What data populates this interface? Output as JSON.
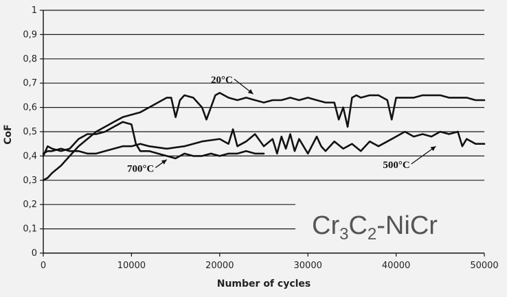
{
  "chart_data": {
    "type": "line",
    "title": "",
    "annotation": {
      "base": "Cr",
      "sub1": "3",
      "mid": "C",
      "sub2": "2",
      "tail": "-NiCr"
    },
    "xlabel": "Number of cycles",
    "ylabel": "CoF",
    "xlim": [
      0,
      50000
    ],
    "ylim": [
      0,
      1
    ],
    "x_ticks": [
      0,
      10000,
      20000,
      30000,
      40000,
      50000
    ],
    "x_tick_labels": [
      "0",
      "10000",
      "20000",
      "30000",
      "40000",
      "50000"
    ],
    "y_ticks": [
      0,
      0.1,
      0.2,
      0.3,
      0.4,
      0.5,
      0.6,
      0.7,
      0.8,
      0.9,
      1
    ],
    "y_tick_labels": [
      "0",
      "0,1",
      "0,2",
      "0,3",
      "0,4",
      "0,5",
      "0,6",
      "0,7",
      "0,8",
      "0,9",
      "1"
    ],
    "grid": true,
    "legend": "inline labels",
    "series": [
      {
        "name": "20°C",
        "x": [
          0,
          500,
          1000,
          2000,
          3000,
          4000,
          5000,
          6000,
          7000,
          8000,
          9000,
          10000,
          11000,
          12000,
          13000,
          14000,
          14500,
          15000,
          15500,
          16000,
          17000,
          18000,
          18500,
          19000,
          19500,
          20000,
          21000,
          22000,
          23000,
          24000,
          25000,
          26000,
          27000,
          28000,
          29000,
          30000,
          31000,
          32000,
          33000,
          33500,
          34000,
          34500,
          35000,
          35500,
          36000,
          37000,
          38000,
          39000,
          39500,
          40000,
          41000,
          42000,
          43000,
          44000,
          45000,
          46000,
          47000,
          48000,
          49000,
          50000
        ],
        "values": [
          0.3,
          0.31,
          0.33,
          0.36,
          0.4,
          0.44,
          0.47,
          0.5,
          0.52,
          0.54,
          0.56,
          0.57,
          0.58,
          0.6,
          0.62,
          0.64,
          0.64,
          0.56,
          0.63,
          0.65,
          0.64,
          0.6,
          0.55,
          0.6,
          0.65,
          0.66,
          0.64,
          0.63,
          0.64,
          0.63,
          0.62,
          0.63,
          0.63,
          0.64,
          0.63,
          0.64,
          0.63,
          0.62,
          0.62,
          0.55,
          0.6,
          0.52,
          0.64,
          0.65,
          0.64,
          0.65,
          0.65,
          0.63,
          0.55,
          0.64,
          0.64,
          0.64,
          0.65,
          0.65,
          0.65,
          0.64,
          0.64,
          0.64,
          0.63,
          0.63
        ]
      },
      {
        "name": "500°C",
        "x": [
          0,
          500,
          1000,
          2000,
          3000,
          4000,
          5000,
          6000,
          7000,
          8000,
          9000,
          10000,
          11000,
          12000,
          14000,
          16000,
          18000,
          20000,
          21000,
          21500,
          22000,
          23000,
          24000,
          25000,
          26000,
          26500,
          27000,
          27500,
          28000,
          28500,
          29000,
          30000,
          31000,
          31500,
          32000,
          33000,
          34000,
          35000,
          36000,
          37000,
          38000,
          39000,
          40000,
          41000,
          42000,
          43000,
          44000,
          45000,
          46000,
          47000,
          47500,
          48000,
          49000,
          50000
        ],
        "values": [
          0.41,
          0.42,
          0.42,
          0.43,
          0.42,
          0.42,
          0.41,
          0.41,
          0.42,
          0.43,
          0.44,
          0.44,
          0.45,
          0.44,
          0.43,
          0.44,
          0.46,
          0.47,
          0.45,
          0.51,
          0.44,
          0.46,
          0.49,
          0.44,
          0.47,
          0.41,
          0.48,
          0.43,
          0.49,
          0.42,
          0.47,
          0.41,
          0.48,
          0.44,
          0.42,
          0.46,
          0.43,
          0.45,
          0.42,
          0.46,
          0.44,
          0.46,
          0.48,
          0.5,
          0.48,
          0.49,
          0.48,
          0.5,
          0.49,
          0.5,
          0.44,
          0.47,
          0.45,
          0.45
        ]
      },
      {
        "name": "700°C",
        "x": [
          0,
          500,
          1000,
          2000,
          3000,
          4000,
          5000,
          6000,
          7000,
          8000,
          9000,
          10000,
          10500,
          11000,
          12000,
          13000,
          14000,
          15000,
          16000,
          17000,
          18000,
          19000,
          20000,
          21000,
          22000,
          23000,
          24000,
          25000
        ],
        "values": [
          0.4,
          0.44,
          0.43,
          0.42,
          0.43,
          0.47,
          0.49,
          0.49,
          0.5,
          0.52,
          0.54,
          0.53,
          0.45,
          0.42,
          0.42,
          0.41,
          0.4,
          0.39,
          0.41,
          0.4,
          0.4,
          0.41,
          0.4,
          0.41,
          0.41,
          0.42,
          0.41,
          0.41
        ]
      }
    ],
    "series_label_positions": [
      {
        "label": "20°C",
        "text_x": 19000,
        "text_y": 0.7,
        "arrow_to_x": 23800,
        "arrow_to_y": 0.655
      },
      {
        "label": "700°C",
        "text_x": 9500,
        "text_y": 0.335,
        "arrow_to_x": 14000,
        "arrow_to_y": 0.385
      },
      {
        "label": "500°C",
        "text_x": 38500,
        "text_y": 0.35,
        "arrow_to_x": 44500,
        "arrow_to_y": 0.44
      }
    ]
  }
}
